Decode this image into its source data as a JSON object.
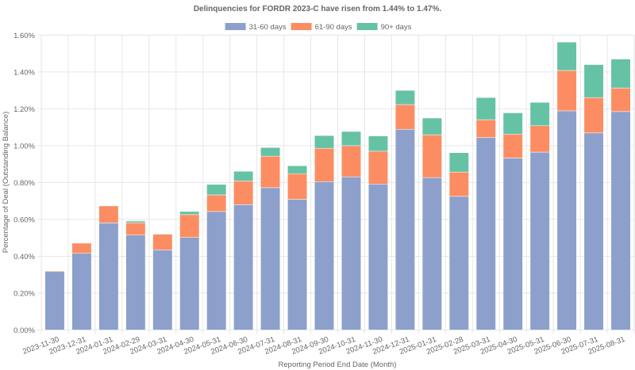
{
  "chart_data": {
    "type": "bar",
    "stacked": true,
    "title": "Delinquencies for FORDR 2023-C have risen from 1.44% to 1.47%.",
    "xlabel": "Reporting Period End Date (Month)",
    "ylabel": "Percentage of Deal (Outstanding Balance)",
    "ylim": [
      0,
      1.6
    ],
    "y_ticks": [
      0,
      0.2,
      0.4,
      0.6,
      0.8,
      1.0,
      1.2,
      1.4,
      1.6
    ],
    "y_tick_labels": [
      "0.00%",
      "0.20%",
      "0.40%",
      "0.60%",
      "0.80%",
      "1.00%",
      "1.20%",
      "1.40%",
      "1.60%"
    ],
    "y_unit": "percent",
    "grid": true,
    "legend_position": "top-center",
    "categories": [
      "2023-11-30",
      "2023-12-31",
      "2024-01-31",
      "2024-02-29",
      "2024-03-31",
      "2024-04-30",
      "2024-05-31",
      "2024-06-30",
      "2024-07-31",
      "2024-08-31",
      "2024-09-30",
      "2024-10-31",
      "2024-11-30",
      "2024-12-31",
      "2025-01-31",
      "2025-02-28",
      "2025-03-31",
      "2025-04-30",
      "2025-05-31",
      "2025-06-30",
      "2025-07-31",
      "2025-08-31"
    ],
    "series": [
      {
        "name": "31-60 days",
        "color": "#8da0cb",
        "values": [
          0.317,
          0.416,
          0.581,
          0.515,
          0.435,
          0.502,
          0.643,
          0.68,
          0.772,
          0.709,
          0.805,
          0.831,
          0.792,
          1.089,
          0.827,
          0.725,
          1.044,
          0.933,
          0.965,
          1.189,
          1.069,
          1.185
        ]
      },
      {
        "name": "61-90 days",
        "color": "#fc8d62",
        "values": [
          0.004,
          0.055,
          0.092,
          0.067,
          0.084,
          0.124,
          0.09,
          0.129,
          0.171,
          0.139,
          0.181,
          0.169,
          0.178,
          0.134,
          0.232,
          0.132,
          0.097,
          0.13,
          0.143,
          0.219,
          0.192,
          0.128
        ]
      },
      {
        "name": "90+ days",
        "color": "#66c2a5",
        "values": [
          0.0,
          0.0,
          0.0,
          0.009,
          0.003,
          0.017,
          0.057,
          0.052,
          0.047,
          0.043,
          0.069,
          0.077,
          0.083,
          0.077,
          0.091,
          0.105,
          0.12,
          0.115,
          0.127,
          0.154,
          0.179,
          0.157
        ]
      }
    ]
  }
}
